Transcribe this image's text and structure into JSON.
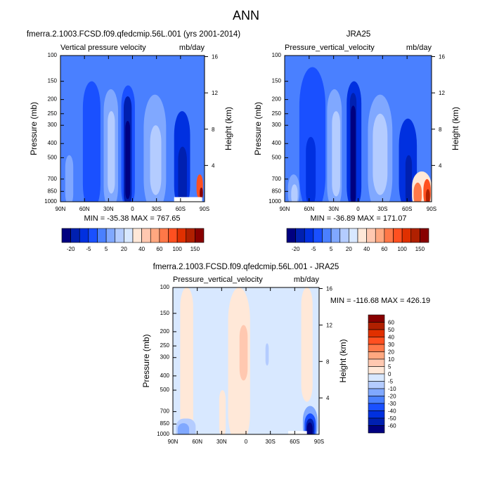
{
  "title": "ANN",
  "colors": {
    "model_obs_scale": [
      "#000080",
      "#0020b0",
      "#0030e0",
      "#1a50ff",
      "#4a80ff",
      "#80a8ff",
      "#b4ccff",
      "#d8e8ff",
      "#ffe8d8",
      "#ffc8b0",
      "#ffa880",
      "#ff7848",
      "#ff5020",
      "#e03000",
      "#b02000",
      "#880000"
    ],
    "diff_scale": [
      "#000080",
      "#0020b0",
      "#0030e0",
      "#1a50ff",
      "#4a80ff",
      "#80a8ff",
      "#b4ccff",
      "#d8e8ff",
      "#ffe8d8",
      "#ffc8b0",
      "#ffa880",
      "#ff7848",
      "#ff5020",
      "#e03000",
      "#b02000",
      "#880000"
    ],
    "missing": "#ffffff"
  },
  "chart_data": [
    {
      "type": "heatmap",
      "subtype": "filled-contour latitude-pressure",
      "title": "fmerra.2.1003.FCSD.f09.qfedcmip.56L.001 (yrs 2001-2014)",
      "left_string": "Vertical pressure velocity",
      "right_string": "mb/day",
      "xlabel": "",
      "ylabel": "Pressure (mb)",
      "ylabel_right": "Height (km)",
      "x_ticks": [
        "90N",
        "60N",
        "30N",
        "0",
        "30S",
        "60S",
        "90S"
      ],
      "y_ticks": [
        "100",
        "150",
        "200",
        "250",
        "300",
        "400",
        "500",
        "700",
        "850",
        "1000"
      ],
      "y_right_ticks": [
        "16",
        "12",
        "8",
        "4"
      ],
      "xlim": [
        90,
        -90
      ],
      "ylim": [
        1000,
        100
      ],
      "stats": "MIN = -35.38  MAX = 767.65",
      "colorbar_labels": [
        "-20",
        "-5",
        "5",
        "20",
        "40",
        "60",
        "100",
        "150"
      ],
      "background_level": 4,
      "features": [
        {
          "lat": [
            62,
            40
          ],
          "p": [
            150,
            1000
          ],
          "level": 3
        },
        {
          "lat": [
            84,
            74
          ],
          "p": [
            480,
            1000
          ],
          "level": 5
        },
        {
          "lat": [
            36,
            18
          ],
          "p": [
            170,
            1000
          ],
          "level": 5
        },
        {
          "lat": [
            31,
            22
          ],
          "p": [
            240,
            880
          ],
          "level": 6
        },
        {
          "lat": [
            14,
            -3
          ],
          "p": [
            160,
            1000
          ],
          "level": 3
        },
        {
          "lat": [
            11,
            1
          ],
          "p": [
            190,
            1000
          ],
          "level": 1
        },
        {
          "lat": [
            9,
            3
          ],
          "p": [
            280,
            960
          ],
          "level": 0
        },
        {
          "lat": [
            -14,
            -42
          ],
          "p": [
            185,
            1000
          ],
          "level": 5
        },
        {
          "lat": [
            -22,
            -36
          ],
          "p": [
            300,
            900
          ],
          "level": 6
        },
        {
          "lat": [
            -52,
            -72
          ],
          "p": [
            240,
            1000
          ],
          "level": 2
        },
        {
          "lat": [
            -57,
            -68
          ],
          "p": [
            420,
            1000
          ],
          "level": 1
        },
        {
          "lat": [
            -80,
            -88
          ],
          "p": [
            650,
            960
          ],
          "level": 12
        },
        {
          "lat": [
            -84,
            -88
          ],
          "p": [
            800,
            960
          ],
          "level": 15
        }
      ],
      "missing_region": {
        "lat": [
          -52,
          -87
        ],
        "p": [
          930,
          1000
        ]
      }
    },
    {
      "type": "heatmap",
      "subtype": "filled-contour latitude-pressure",
      "title": "JRA25",
      "left_string": "Pressure_vertical_velocity",
      "right_string": "mb/day",
      "ylabel": "Pressure (mb)",
      "ylabel_right": "Height (km)",
      "x_ticks": [
        "90N",
        "60N",
        "30N",
        "0",
        "30S",
        "60S",
        "90S"
      ],
      "y_ticks": [
        "100",
        "150",
        "200",
        "250",
        "300",
        "400",
        "500",
        "700",
        "850",
        "1000"
      ],
      "y_right_ticks": [
        "16",
        "12",
        "8",
        "4"
      ],
      "xlim": [
        90,
        -90
      ],
      "ylim": [
        1000,
        100
      ],
      "stats": "MIN = -36.89  MAX = 171.07",
      "colorbar_labels": [
        "-20",
        "-5",
        "5",
        "20",
        "40",
        "60",
        "100",
        "150"
      ],
      "background_level": 4,
      "features": [
        {
          "lat": [
            72,
            40
          ],
          "p": [
            120,
            1000
          ],
          "level": 3
        },
        {
          "lat": [
            64,
            52
          ],
          "p": [
            360,
            1000
          ],
          "level": 2
        },
        {
          "lat": [
            86,
            72
          ],
          "p": [
            650,
            1000
          ],
          "level": 5
        },
        {
          "lat": [
            82,
            74
          ],
          "p": [
            760,
            1000
          ],
          "level": 6
        },
        {
          "lat": [
            38,
            20
          ],
          "p": [
            170,
            1000
          ],
          "level": 5
        },
        {
          "lat": [
            32,
            22
          ],
          "p": [
            240,
            920
          ],
          "level": 6
        },
        {
          "lat": [
            14,
            -4
          ],
          "p": [
            150,
            1000
          ],
          "level": 2
        },
        {
          "lat": [
            10,
            2
          ],
          "p": [
            180,
            1000
          ],
          "level": 1
        },
        {
          "lat": [
            9,
            3
          ],
          "p": [
            220,
            1000
          ],
          "level": 0
        },
        {
          "lat": [
            -12,
            -42
          ],
          "p": [
            185,
            1000
          ],
          "level": 5
        },
        {
          "lat": [
            -18,
            -36
          ],
          "p": [
            250,
            900
          ],
          "level": 6
        },
        {
          "lat": [
            -50,
            -72
          ],
          "p": [
            270,
            1000
          ],
          "level": 2
        },
        {
          "lat": [
            -58,
            -66
          ],
          "p": [
            480,
            1000
          ],
          "level": 1
        },
        {
          "lat": [
            -66,
            -90
          ],
          "p": [
            620,
            1000
          ],
          "level": 8
        },
        {
          "lat": [
            -68,
            -78
          ],
          "p": [
            740,
            1000
          ],
          "level": 11
        },
        {
          "lat": [
            -80,
            -89
          ],
          "p": [
            700,
            1000
          ],
          "level": 12
        },
        {
          "lat": [
            -83,
            -88
          ],
          "p": [
            820,
            1000
          ],
          "level": 14
        }
      ]
    },
    {
      "type": "heatmap",
      "subtype": "filled-contour latitude-pressure difference",
      "title": "fmerra.2.1003.FCSD.f09.qfedcmip.56L.001 - JRA25",
      "left_string": "Pressure_vertical_velocity",
      "right_string": "mb/day",
      "ylabel": "Pressure (mb)",
      "ylabel_right": "Height (km)",
      "x_ticks": [
        "90N",
        "60N",
        "30N",
        "0",
        "30S",
        "60S",
        "90S"
      ],
      "y_ticks": [
        "100",
        "150",
        "200",
        "250",
        "300",
        "400",
        "500",
        "700",
        "850",
        "1000"
      ],
      "y_right_ticks": [
        "16",
        "12",
        "8",
        "4"
      ],
      "xlim": [
        90,
        -90
      ],
      "ylim": [
        1000,
        100
      ],
      "stats": "MIN = -116.68  MAX = 426.19",
      "colorbar_labels": [
        "60",
        "50",
        "40",
        "30",
        "20",
        "10",
        "5",
        "0",
        "-5",
        "-10",
        "-20",
        "-30",
        "-40",
        "-50",
        "-60"
      ],
      "background_level": 7,
      "features": [
        {
          "lat": [
            81,
            65
          ],
          "p": [
            100,
            1000
          ],
          "level": 8
        },
        {
          "lat": [
            22,
            -5
          ],
          "p": [
            100,
            1000
          ],
          "level": 8
        },
        {
          "lat": [
            8,
            -2
          ],
          "p": [
            180,
            430
          ],
          "level": 9
        },
        {
          "lat": [
            33,
            25
          ],
          "p": [
            500,
            1000
          ],
          "level": 8
        },
        {
          "lat": [
            -24,
            -28
          ],
          "p": [
            240,
            340
          ],
          "level": 6
        },
        {
          "lat": [
            -68,
            -82
          ],
          "p": [
            100,
            600
          ],
          "level": 8
        },
        {
          "lat": [
            86,
            62
          ],
          "p": [
            780,
            1000
          ],
          "level": 6
        },
        {
          "lat": [
            84,
            70
          ],
          "p": [
            840,
            1000
          ],
          "level": 5
        },
        {
          "lat": [
            -70,
            -88
          ],
          "p": [
            640,
            1000
          ],
          "level": 5
        },
        {
          "lat": [
            -72,
            -86
          ],
          "p": [
            720,
            1000
          ],
          "level": 3
        },
        {
          "lat": [
            -74,
            -84
          ],
          "p": [
            780,
            1000
          ],
          "level": 1
        },
        {
          "lat": [
            -75,
            -82
          ],
          "p": [
            830,
            1000
          ],
          "level": 0
        }
      ],
      "missing_region": {
        "lat": [
          -52,
          -75
        ],
        "p": [
          950,
          1000
        ]
      }
    }
  ]
}
